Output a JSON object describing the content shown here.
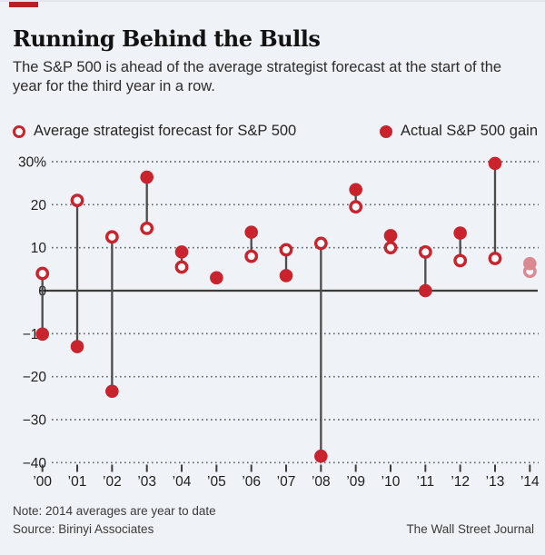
{
  "header": {
    "title": "Running Behind the Bulls",
    "subtitle": "The S&P 500 is ahead of the average strategist forecast at the start of the year for the third year in a row."
  },
  "legend": {
    "items": [
      {
        "marker": "open-circle",
        "label": "Average strategist forecast for S&P 500"
      },
      {
        "marker": "filled-circle",
        "label": "Actual S&P 500 gain"
      }
    ]
  },
  "footer": {
    "note": "Note: 2014 averages are year to date",
    "source": "Source: Birinyi Associates",
    "credit": "The Wall Street Journal"
  },
  "colors": {
    "background": "#eff2f6",
    "accent_red": "#c9232d",
    "axis": "#3c3c3c",
    "stem": "#4b4b4b",
    "grid_dots": "#60646b",
    "text_dark": "#1e1e1e"
  },
  "chart_data": {
    "type": "scatter",
    "title": "Running Behind the Bulls",
    "xlabel": "",
    "ylabel": "",
    "x": [
      "’00",
      "’01",
      "’02",
      "’03",
      "’04",
      "’05",
      "’06",
      "’07",
      "’08",
      "’09",
      "’10",
      "’11",
      "’12",
      "’13",
      "’14"
    ],
    "series": [
      {
        "name": "Average strategist forecast for S&P 500",
        "marker": "open-circle",
        "values": [
          4,
          21,
          12.5,
          14.5,
          5.5,
          null,
          8,
          9.5,
          11,
          19.5,
          10,
          9,
          7,
          7.5,
          4.5
        ]
      },
      {
        "name": "Actual S&P 500 gain",
        "marker": "filled-circle",
        "values": [
          -10.1,
          -13,
          -23.4,
          26.4,
          9,
          3,
          13.6,
          3.5,
          -38.5,
          23.5,
          12.8,
          0,
          13.4,
          29.6,
          6.3
        ]
      }
    ],
    "ytick_labels": [
      "30%",
      "20",
      "10",
      "0",
      "−10",
      "−20",
      "−30",
      "−40"
    ],
    "ytick_values": [
      30,
      20,
      10,
      0,
      -10,
      -20,
      -30,
      -40
    ],
    "ylim": [
      -42,
      33
    ],
    "grid": "horizontal dotted lines, solid line at zero",
    "legend_position": "top",
    "connector": "vertical stem between forecast and actual per year",
    "faded_last_year": true
  }
}
